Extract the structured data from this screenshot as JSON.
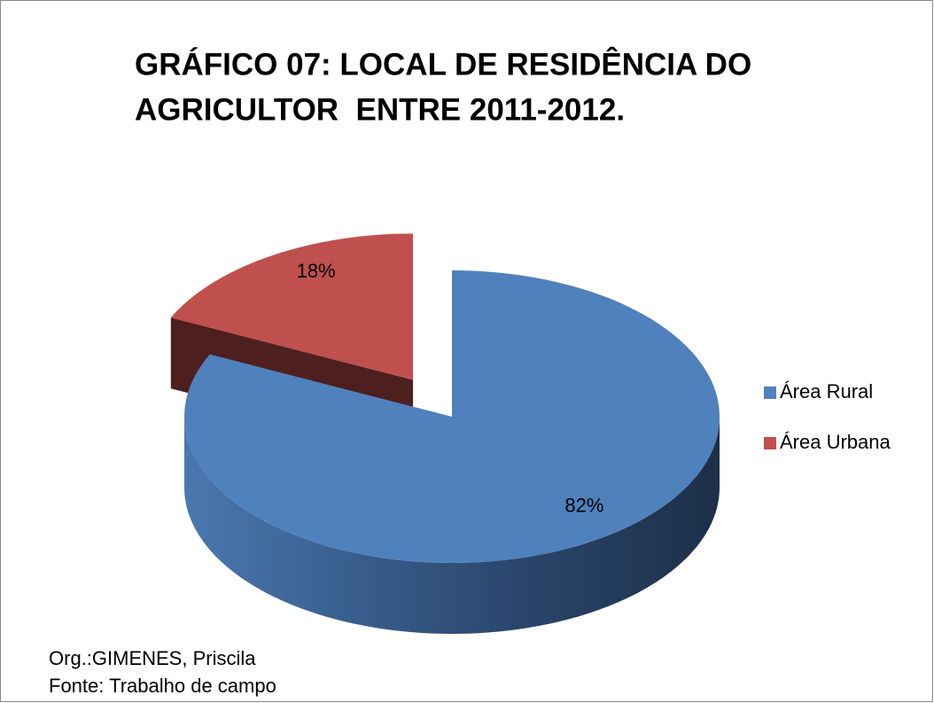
{
  "chart_data": {
    "type": "pie",
    "title": [
      "GRÁFICO 07: LOCAL DE RESIDÊNCIA DO",
      "AGRICULTOR  ENTRE 2011-2012."
    ],
    "categories": [
      "Área Rural",
      "Área Urbana"
    ],
    "values": [
      82,
      18
    ],
    "value_labels": [
      "82%",
      "18%"
    ],
    "colors": [
      "#4f81bd",
      "#c0504d"
    ],
    "legend": "right",
    "notes": [
      "Org.:GIMENES, Priscila",
      "Fonte: Trabalho de campo"
    ]
  }
}
